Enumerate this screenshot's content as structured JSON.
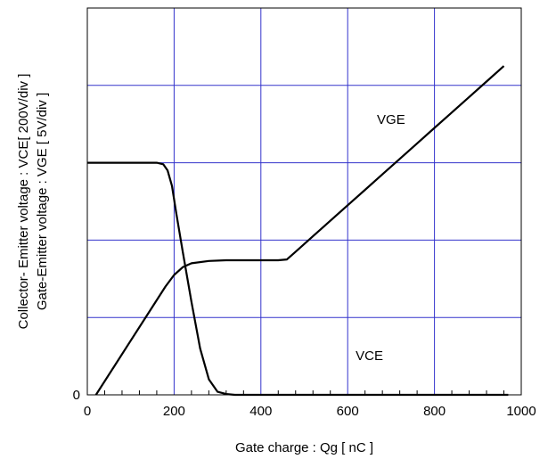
{
  "chart_data": {
    "type": "line",
    "title": "",
    "xlabel": "Gate charge : Qg [ nC ]",
    "ylabel_lines": [
      "Collector- Emitter voltage : VCE[ 200V/div ]",
      "Gate-Emitter voltage : VGE [ 5V/div ]"
    ],
    "xlim": [
      0,
      1000
    ],
    "ylim_div": [
      0,
      5
    ],
    "x_ticks": [
      0,
      200,
      400,
      600,
      800,
      1000
    ],
    "x_tick_labels": [
      "0",
      "200",
      "400",
      "600",
      "800",
      "1000"
    ],
    "y_tick_labels": [
      {
        "div": 0,
        "label": "0"
      }
    ],
    "grid": true,
    "grid_color": "#3333cc",
    "series": [
      {
        "name": "VGE",
        "x": [
          20,
          60,
          100,
          140,
          180,
          200,
          220,
          240,
          280,
          320,
          360,
          400,
          440,
          460,
          480,
          520,
          560,
          600,
          640,
          680,
          720,
          760,
          800,
          840,
          880,
          920,
          960
        ],
        "y": [
          0.0,
          0.35,
          0.7,
          1.05,
          1.4,
          1.55,
          1.65,
          1.7,
          1.73,
          1.74,
          1.74,
          1.74,
          1.74,
          1.75,
          1.85,
          2.05,
          2.25,
          2.45,
          2.65,
          2.85,
          3.05,
          3.25,
          3.45,
          3.65,
          3.85,
          4.05,
          4.25
        ]
      },
      {
        "name": "VCE",
        "x": [
          0,
          100,
          160,
          175,
          185,
          195,
          205,
          220,
          240,
          260,
          280,
          300,
          320,
          340,
          400,
          500,
          600,
          700,
          800,
          900,
          970
        ],
        "y": [
          3.0,
          3.0,
          3.0,
          2.98,
          2.9,
          2.7,
          2.35,
          1.85,
          1.2,
          0.6,
          0.2,
          0.04,
          0.01,
          0.0,
          0.0,
          0.0,
          0.0,
          0.0,
          0.0,
          0.0,
          0.0
        ]
      }
    ],
    "annotations": [
      "VGE",
      "VCE"
    ]
  }
}
